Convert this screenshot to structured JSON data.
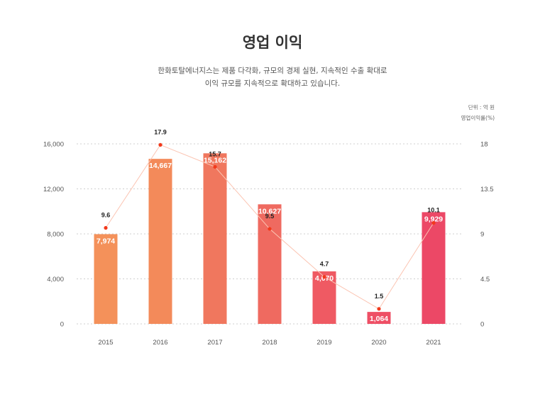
{
  "header": {
    "title": "영업 이익",
    "subtitle_lines": [
      "한화토탈에너지스는 제품 다각화, 규모의 경제 실현, 지속적인 수출 확대로",
      "이익 규모를 지속적으로 확대하고 있습니다."
    ]
  },
  "units": {
    "left": "단위 : 억 원",
    "right": "영업이익률(%)"
  },
  "chart_data": {
    "type": "bar",
    "title": "영업 이익",
    "categories": [
      "2015",
      "2016",
      "2017",
      "2018",
      "2019",
      "2020",
      "2021"
    ],
    "series": [
      {
        "name": "영업 이익 (억 원)",
        "type": "bar",
        "axis": "left",
        "values": [
          7974,
          14667,
          15162,
          10627,
          4670,
          1064,
          9929
        ],
        "labels": [
          "7,974",
          "14,667",
          "15,162",
          "10,627",
          "4,670",
          "1,064",
          "9,929"
        ],
        "colors": [
          "#f4915a",
          "#f38a5a",
          "#f0775e",
          "#ef6a60",
          "#ef5a63",
          "#ee4f65",
          "#ec4866"
        ]
      },
      {
        "name": "영업이익률(%)",
        "type": "line",
        "axis": "right",
        "values": [
          9.6,
          17.9,
          15.7,
          9.5,
          4.7,
          1.5,
          10.1
        ],
        "labels": [
          "9.6",
          "17.9",
          "15.7",
          "9.5",
          "4.7",
          "1.5",
          "10.1"
        ],
        "line_color": "#fbc4b2",
        "point_color": "#f2391c"
      }
    ],
    "y_left": {
      "range": [
        0,
        16000
      ],
      "ticks": [
        0,
        4000,
        8000,
        12000,
        16000
      ],
      "tick_labels": [
        "0",
        "4,000",
        "8,000",
        "12,000",
        "16,000"
      ],
      "label": "단위 : 억 원"
    },
    "y_right": {
      "range": [
        0,
        18
      ],
      "ticks": [
        0,
        4.5,
        9,
        13.5,
        18
      ],
      "tick_labels": [
        "0",
        "4.5",
        "9",
        "13.5",
        "18"
      ],
      "label": "영업이익률(%)"
    },
    "xlabel": "",
    "grid": true,
    "grid_style": "dotted",
    "legend": "none"
  }
}
